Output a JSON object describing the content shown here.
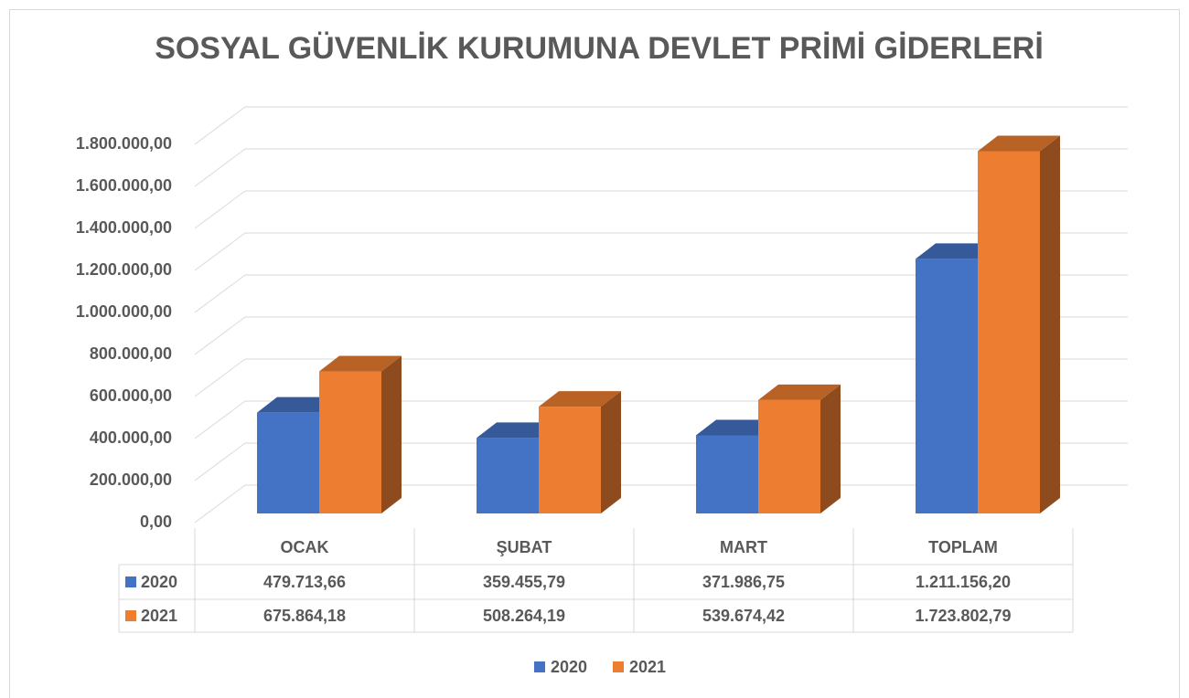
{
  "chart_data": {
    "type": "bar3d",
    "title": "SOSYAL GÜVENLİK KURUMUNA DEVLET PRİMİ GİDERLERİ",
    "categories": [
      "OCAK",
      "ŞUBAT",
      "MART",
      "TOPLAM"
    ],
    "series": [
      {
        "name": "2020",
        "color": "#4472c4",
        "values": [
          479713.66,
          359455.79,
          371986.75,
          1211156.2
        ],
        "value_labels": [
          "479.713,66",
          "359.455,79",
          "371.986,75",
          "1.211.156,20"
        ]
      },
      {
        "name": "2021",
        "color": "#ed7d31",
        "values": [
          675864.18,
          508264.19,
          539674.42,
          1723802.79
        ],
        "value_labels": [
          "675.864,18",
          "508.264,19",
          "539.674,42",
          "1.723.802,79"
        ]
      }
    ],
    "ylim": [
      0,
      1800000
    ],
    "yticks": [
      {
        "value": 0,
        "label": "0,00"
      },
      {
        "value": 200000,
        "label": "200.000,00"
      },
      {
        "value": 400000,
        "label": "400.000,00"
      },
      {
        "value": 600000,
        "label": "600.000,00"
      },
      {
        "value": 800000,
        "label": "800.000,00"
      },
      {
        "value": 1000000,
        "label": "1.000.000,00"
      },
      {
        "value": 1200000,
        "label": "1.200.000,00"
      },
      {
        "value": 1400000,
        "label": "1.400.000,00"
      },
      {
        "value": 1600000,
        "label": "1.600.000,00"
      },
      {
        "value": 1800000,
        "label": "1.800.000,00"
      }
    ],
    "grid": true,
    "data_table": true,
    "legend": "bottom"
  }
}
